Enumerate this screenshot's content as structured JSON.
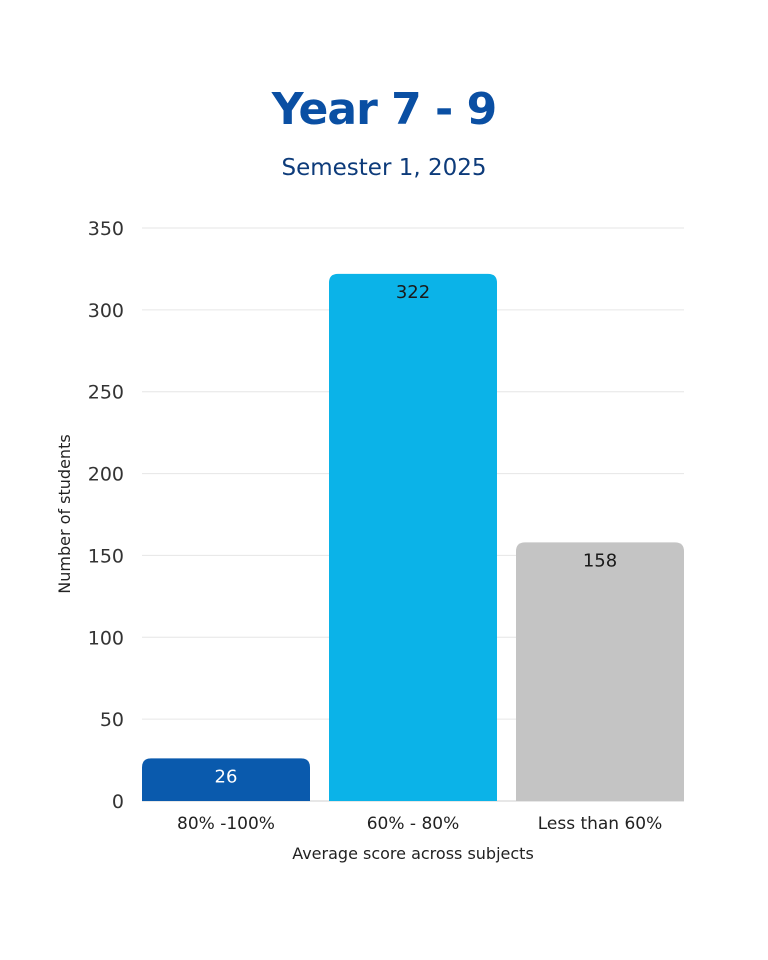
{
  "header": {
    "title": "Year 7 - 9",
    "subtitle": "Semester 1, 2025"
  },
  "chart_data": {
    "type": "bar",
    "title": "Year 7 - 9",
    "subtitle": "Semester 1, 2025",
    "categories": [
      "80% -100%",
      "60% - 80%",
      "Less than 60%"
    ],
    "values": [
      26,
      322,
      158
    ],
    "bar_colors": [
      "#0a5aad",
      "#0bb3e8",
      "#c4c4c4"
    ],
    "label_colors": [
      "#ffffff",
      "#1a1a1a",
      "#1a1a1a"
    ],
    "xlabel": "Average score across subjects",
    "ylabel": "Number of students",
    "ylim": [
      0,
      350
    ],
    "yticks": [
      0,
      50,
      100,
      150,
      200,
      250,
      300,
      350
    ],
    "grid": true,
    "legend": "none"
  }
}
